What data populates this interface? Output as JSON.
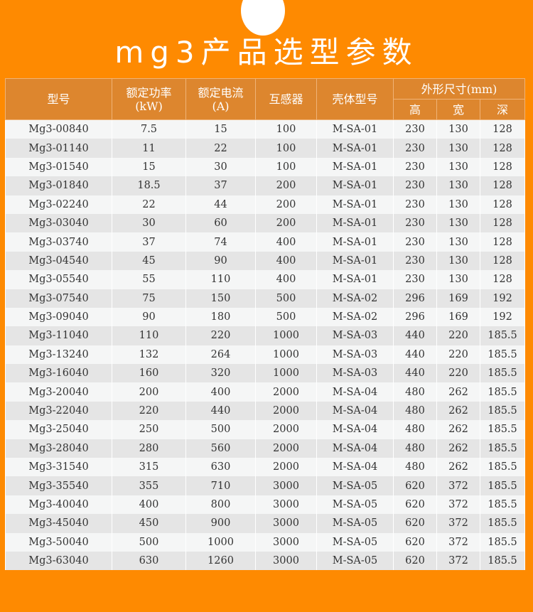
{
  "title": "mg3产品选型参数",
  "headers": {
    "model": "型号",
    "power": "额定功率",
    "power_unit": "(kW)",
    "current": "额定电流",
    "current_unit": "(A)",
    "ct": "互感器",
    "case": "壳体型号",
    "dims": "外形尺寸(mm)",
    "h": "高",
    "w": "宽",
    "d": "深"
  },
  "rows": [
    [
      "Mg3-00840",
      "7.5",
      "15",
      "100",
      "M-SA-01",
      "230",
      "130",
      "128"
    ],
    [
      "Mg3-01140",
      "11",
      "22",
      "100",
      "M-SA-01",
      "230",
      "130",
      "128"
    ],
    [
      "Mg3-01540",
      "15",
      "30",
      "100",
      "M-SA-01",
      "230",
      "130",
      "128"
    ],
    [
      "Mg3-01840",
      "18.5",
      "37",
      "200",
      "M-SA-01",
      "230",
      "130",
      "128"
    ],
    [
      "Mg3-02240",
      "22",
      "44",
      "200",
      "M-SA-01",
      "230",
      "130",
      "128"
    ],
    [
      "Mg3-03040",
      "30",
      "60",
      "200",
      "M-SA-01",
      "230",
      "130",
      "128"
    ],
    [
      "Mg3-03740",
      "37",
      "74",
      "400",
      "M-SA-01",
      "230",
      "130",
      "128"
    ],
    [
      "Mg3-04540",
      "45",
      "90",
      "400",
      "M-SA-01",
      "230",
      "130",
      "128"
    ],
    [
      "Mg3-05540",
      "55",
      "110",
      "400",
      "M-SA-01",
      "230",
      "130",
      "128"
    ],
    [
      "Mg3-07540",
      "75",
      "150",
      "500",
      "M-SA-02",
      "296",
      "169",
      "192"
    ],
    [
      "Mg3-09040",
      "90",
      "180",
      "500",
      "M-SA-02",
      "296",
      "169",
      "192"
    ],
    [
      "Mg3-11040",
      "110",
      "220",
      "1000",
      "M-SA-03",
      "440",
      "220",
      "185.5"
    ],
    [
      "Mg3-13240",
      "132",
      "264",
      "1000",
      "M-SA-03",
      "440",
      "220",
      "185.5"
    ],
    [
      "Mg3-16040",
      "160",
      "320",
      "1000",
      "M-SA-03",
      "440",
      "220",
      "185.5"
    ],
    [
      "Mg3-20040",
      "200",
      "400",
      "2000",
      "M-SA-04",
      "480",
      "262",
      "185.5"
    ],
    [
      "Mg3-22040",
      "220",
      "440",
      "2000",
      "M-SA-04",
      "480",
      "262",
      "185.5"
    ],
    [
      "Mg3-25040",
      "250",
      "500",
      "2000",
      "M-SA-04",
      "480",
      "262",
      "185.5"
    ],
    [
      "Mg3-28040",
      "280",
      "560",
      "2000",
      "M-SA-04",
      "480",
      "262",
      "185.5"
    ],
    [
      "Mg3-31540",
      "315",
      "630",
      "2000",
      "M-SA-04",
      "480",
      "262",
      "185.5"
    ],
    [
      "Mg3-35540",
      "355",
      "710",
      "3000",
      "M-SA-05",
      "620",
      "372",
      "185.5"
    ],
    [
      "Mg3-40040",
      "400",
      "800",
      "3000",
      "M-SA-05",
      "620",
      "372",
      "185.5"
    ],
    [
      "Mg3-45040",
      "450",
      "900",
      "3000",
      "M-SA-05",
      "620",
      "372",
      "185.5"
    ],
    [
      "Mg3-50040",
      "500",
      "1000",
      "3000",
      "M-SA-05",
      "620",
      "372",
      "185.5"
    ],
    [
      "Mg3-63040",
      "630",
      "1260",
      "3000",
      "M-SA-05",
      "620",
      "372",
      "185.5"
    ]
  ]
}
